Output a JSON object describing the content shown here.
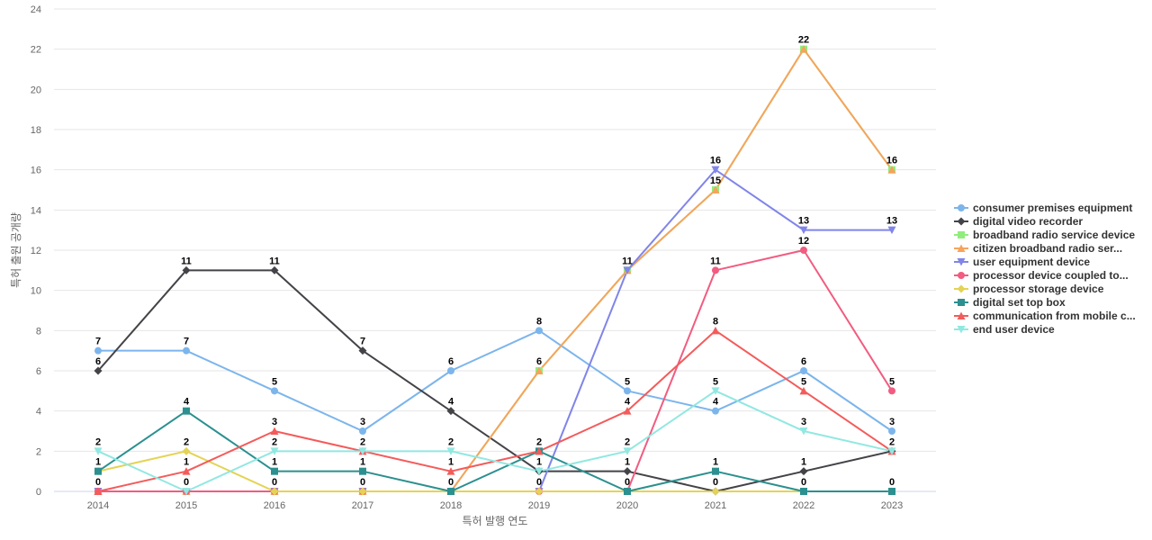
{
  "chart_data": {
    "type": "line",
    "title": "",
    "xlabel": "특허 발행 연도",
    "ylabel": "특허 출원 공개량",
    "categories": [
      "2014",
      "2015",
      "2016",
      "2017",
      "2018",
      "2019",
      "2020",
      "2021",
      "2022",
      "2023"
    ],
    "ylim": [
      0,
      24
    ],
    "yticks": [
      0,
      2,
      4,
      6,
      8,
      10,
      12,
      14,
      16,
      18,
      20,
      22,
      24
    ],
    "grid": true,
    "legend_position": "right",
    "series": [
      {
        "name": "consumer premises equipment",
        "color": "#7cb5ec",
        "marker": "circle",
        "values": [
          7,
          7,
          5,
          3,
          6,
          8,
          5,
          4,
          6,
          3
        ]
      },
      {
        "name": "digital video recorder",
        "color": "#434348",
        "marker": "diamond",
        "values": [
          6,
          11,
          11,
          7,
          4,
          1,
          1,
          0,
          1,
          2
        ]
      },
      {
        "name": "broadband radio service device",
        "color": "#90ed7d",
        "marker": "square",
        "values": [
          0,
          0,
          0,
          0,
          0,
          6,
          11,
          15,
          22,
          16
        ]
      },
      {
        "name": "citizen broadband radio ser...",
        "color": "#f7a35c",
        "marker": "triangle",
        "values": [
          0,
          0,
          0,
          0,
          0,
          6,
          11,
          15,
          22,
          16
        ]
      },
      {
        "name": "user equipment device",
        "color": "#8085e9",
        "marker": "triangle-down",
        "values": [
          0,
          0,
          0,
          0,
          0,
          0,
          11,
          16,
          13,
          13
        ]
      },
      {
        "name": "processor device coupled to...",
        "color": "#f15c80",
        "marker": "circle",
        "values": [
          0,
          0,
          0,
          0,
          0,
          0,
          0,
          11,
          12,
          5
        ]
      },
      {
        "name": "processor storage device",
        "color": "#e4d354",
        "marker": "diamond",
        "values": [
          1,
          2,
          0,
          0,
          0,
          0,
          0,
          0,
          0,
          0
        ]
      },
      {
        "name": "digital set top box",
        "color": "#2b908f",
        "marker": "square",
        "values": [
          1,
          4,
          1,
          1,
          0,
          2,
          0,
          1,
          0,
          0
        ]
      },
      {
        "name": "communication from mobile c...",
        "color": "#f45b5b",
        "marker": "triangle",
        "values": [
          0,
          1,
          3,
          2,
          1,
          2,
          4,
          8,
          5,
          2
        ]
      },
      {
        "name": "end user device",
        "color": "#91e8e1",
        "marker": "triangle-down",
        "values": [
          2,
          0,
          2,
          2,
          2,
          1,
          2,
          5,
          3,
          2
        ]
      }
    ],
    "data_labels": [
      {
        "x": "2014",
        "value": "7"
      },
      {
        "x": "2014",
        "value": "6"
      },
      {
        "x": "2014",
        "value": "2"
      },
      {
        "x": "2014",
        "value": "1"
      },
      {
        "x": "2014",
        "value": "0"
      },
      {
        "x": "2015",
        "value": "11"
      },
      {
        "x": "2015",
        "value": "7"
      },
      {
        "x": "2015",
        "value": "4"
      },
      {
        "x": "2015",
        "value": "2"
      },
      {
        "x": "2015",
        "value": "1"
      },
      {
        "x": "2015",
        "value": "0"
      },
      {
        "x": "2016",
        "value": "11"
      },
      {
        "x": "2016",
        "value": "5"
      },
      {
        "x": "2016",
        "value": "3"
      },
      {
        "x": "2016",
        "value": "2"
      },
      {
        "x": "2016",
        "value": "1"
      },
      {
        "x": "2016",
        "value": "0"
      },
      {
        "x": "2017",
        "value": "7"
      },
      {
        "x": "2017",
        "value": "3"
      },
      {
        "x": "2017",
        "value": "2"
      },
      {
        "x": "2017",
        "value": "1"
      },
      {
        "x": "2017",
        "value": "0"
      },
      {
        "x": "2018",
        "value": "6"
      },
      {
        "x": "2018",
        "value": "4"
      },
      {
        "x": "2018",
        "value": "2"
      },
      {
        "x": "2018",
        "value": "1"
      },
      {
        "x": "2018",
        "value": "0"
      },
      {
        "x": "2019",
        "value": "8"
      },
      {
        "x": "2019",
        "value": "6"
      },
      {
        "x": "2019",
        "value": "2"
      },
      {
        "x": "2019",
        "value": "1"
      },
      {
        "x": "2019",
        "value": "0"
      },
      {
        "x": "2020",
        "value": "11"
      },
      {
        "x": "2020",
        "value": "5"
      },
      {
        "x": "2020",
        "value": "4"
      },
      {
        "x": "2020",
        "value": "2"
      },
      {
        "x": "2020",
        "value": "1"
      },
      {
        "x": "2020",
        "value": "0"
      },
      {
        "x": "2021",
        "value": "16"
      },
      {
        "x": "2021",
        "value": "15"
      },
      {
        "x": "2021",
        "value": "11"
      },
      {
        "x": "2021",
        "value": "8"
      },
      {
        "x": "2021",
        "value": "5"
      },
      {
        "x": "2021",
        "value": "4"
      },
      {
        "x": "2021",
        "value": "1"
      },
      {
        "x": "2021",
        "value": "0"
      },
      {
        "x": "2022",
        "value": "22"
      },
      {
        "x": "2022",
        "value": "13"
      },
      {
        "x": "2022",
        "value": "12"
      },
      {
        "x": "2022",
        "value": "6"
      },
      {
        "x": "2022",
        "value": "5"
      },
      {
        "x": "2022",
        "value": "3"
      },
      {
        "x": "2022",
        "value": "1"
      },
      {
        "x": "2022",
        "value": "0"
      },
      {
        "x": "2023",
        "value": "16"
      },
      {
        "x": "2023",
        "value": "13"
      },
      {
        "x": "2023",
        "value": "5"
      },
      {
        "x": "2023",
        "value": "3"
      },
      {
        "x": "2023",
        "value": "2"
      },
      {
        "x": "2023",
        "value": "0"
      }
    ]
  }
}
